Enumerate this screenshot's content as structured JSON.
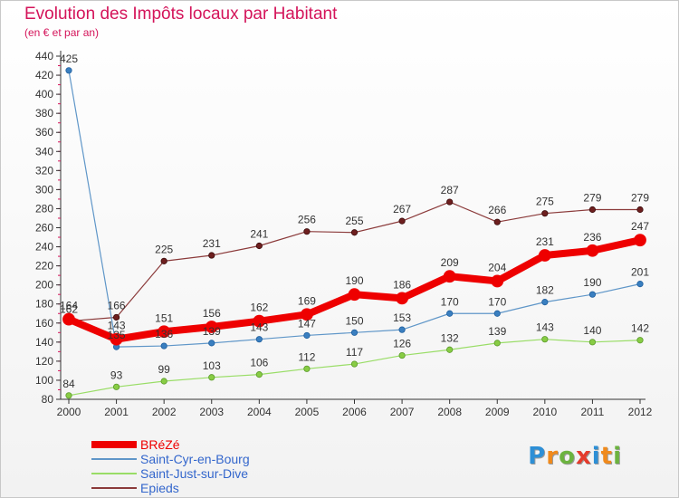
{
  "title": "Evolution des Impôts locaux par Habitant",
  "subtitle": "(en € et par an)",
  "logo": {
    "letters": [
      "P",
      "r",
      "o",
      "x",
      "i",
      "t",
      "i"
    ],
    "colors": [
      "#2d8fd6",
      "#f08a1c",
      "#6cb33f",
      "#e53b2c",
      "#2d8fd6",
      "#f08a1c",
      "#6cb33f"
    ]
  },
  "chart_data": {
    "type": "line",
    "title": "Evolution des Impôts locaux par Habitant",
    "subtitle": "(en € et par an)",
    "xlabel": "",
    "ylabel": "",
    "x": [
      "2000",
      "2001",
      "2002",
      "2003",
      "2004",
      "2005",
      "2006",
      "2007",
      "2008",
      "2009",
      "2010",
      "2011",
      "2012"
    ],
    "ylim": [
      80,
      440
    ],
    "yticks": [
      "80",
      "100",
      "120",
      "140",
      "160",
      "180",
      "200",
      "220",
      "240",
      "260",
      "280",
      "300",
      "320",
      "340",
      "360",
      "380",
      "400",
      "420",
      "440"
    ],
    "grid": false,
    "legend_position": "bottom-left",
    "series": [
      {
        "name": "BRéZé",
        "color": "#ee0000",
        "values": [
          164,
          143,
          151,
          156,
          162,
          169,
          190,
          186,
          209,
          204,
          231,
          236,
          247
        ],
        "labels": [
          "164",
          "143",
          "151",
          "156",
          "162",
          "169",
          "190",
          "186",
          "209",
          "204",
          "231",
          "236",
          "247"
        ]
      },
      {
        "name": "Saint-Cyr-en-Bourg",
        "color": "#5f96c8",
        "values": [
          425,
          135,
          136,
          139,
          143,
          147,
          150,
          153,
          170,
          170,
          182,
          190,
          201
        ],
        "labels": [
          "425",
          "135",
          "136",
          "139",
          "143",
          "147",
          "150",
          "153",
          "170",
          "170",
          "182",
          "190",
          "201"
        ]
      },
      {
        "name": "Saint-Just-sur-Dive",
        "color": "#99dd66",
        "values": [
          84,
          93,
          99,
          103,
          106,
          112,
          117,
          126,
          132,
          139,
          143,
          140,
          142
        ],
        "labels": [
          "84",
          "93",
          "99",
          "103",
          "106",
          "112",
          "117",
          "126",
          "132",
          "139",
          "143",
          "140",
          "142"
        ]
      },
      {
        "name": "Epieds",
        "color": "#8b3a3a",
        "values": [
          162,
          166,
          225,
          231,
          241,
          256,
          255,
          267,
          287,
          266,
          275,
          279,
          279
        ],
        "labels": [
          "162",
          "166",
          "225",
          "231",
          "241",
          "256",
          "255",
          "267",
          "287",
          "266",
          "275",
          "279",
          "279"
        ]
      }
    ]
  }
}
